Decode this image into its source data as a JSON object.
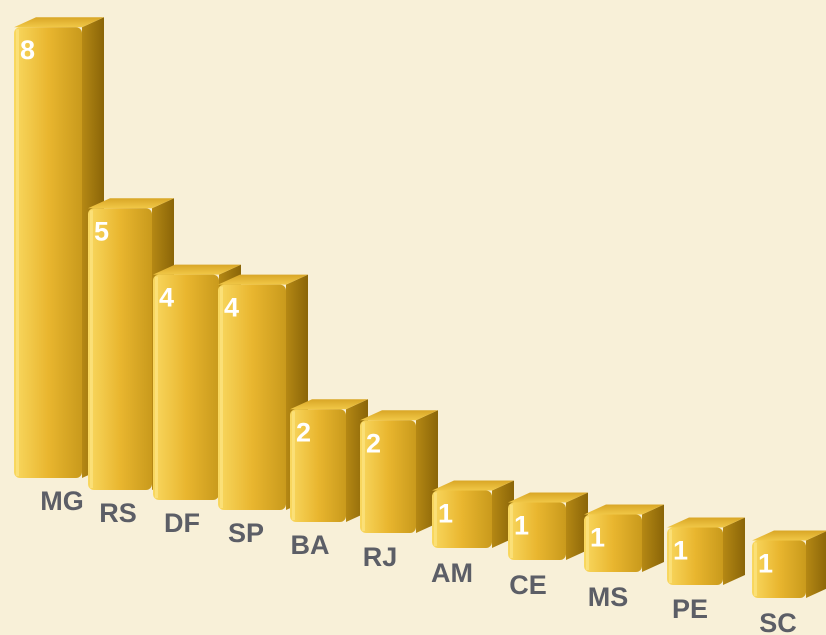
{
  "chart_data": {
    "type": "bar",
    "categories": [
      "MG",
      "RS",
      "DF",
      "SP",
      "BA",
      "RJ",
      "AM",
      "CE",
      "MS",
      "PE",
      "SC"
    ],
    "values": [
      8,
      5,
      4,
      4,
      2,
      2,
      1,
      1,
      1,
      1,
      1
    ],
    "title": "",
    "xlabel": "",
    "ylabel": "",
    "ylim": [
      0,
      8
    ],
    "grid": false,
    "legend": "none",
    "style": "3d-perspective",
    "colors": {
      "background": "#f8f0d8",
      "bar": "#e8b52e",
      "bar_dark": "#b88a14",
      "bar_light": "#f7d45c",
      "value_label": "#ffffff",
      "category_label": "#5c5e66"
    }
  }
}
